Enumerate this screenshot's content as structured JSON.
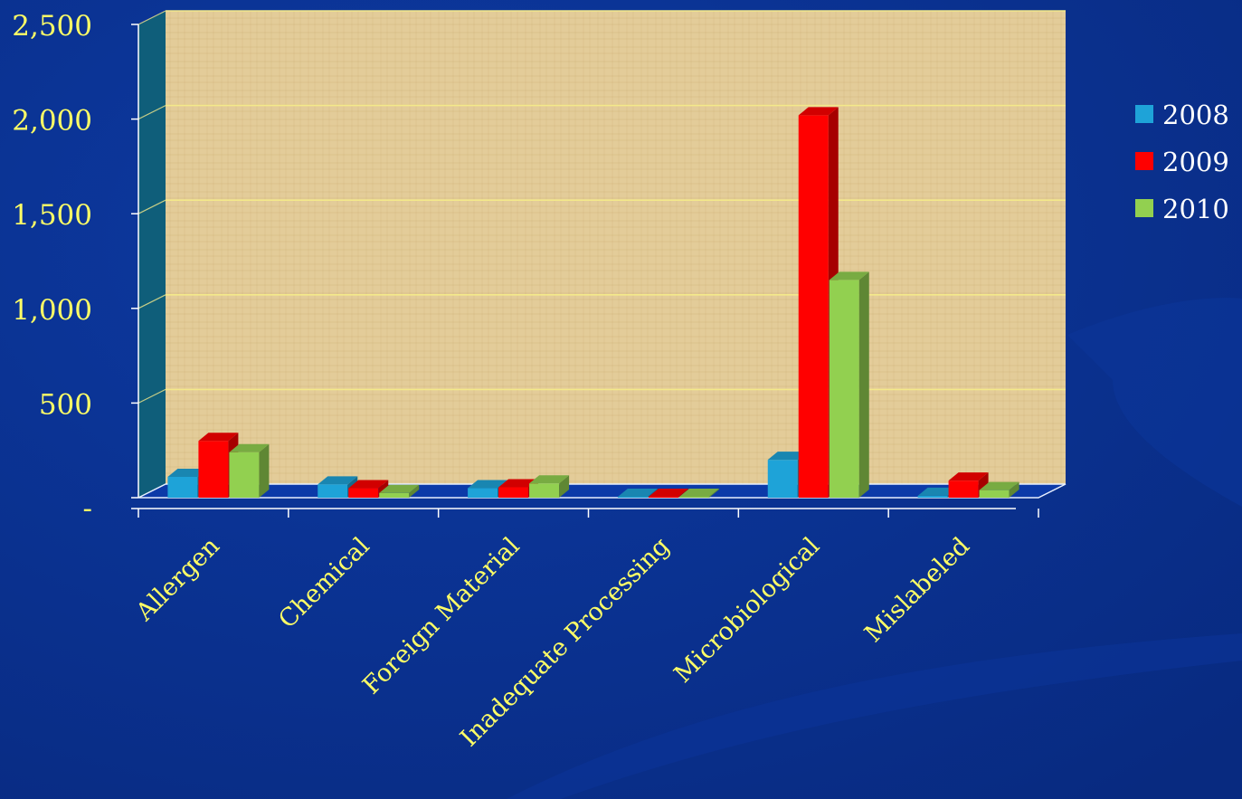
{
  "chart_data": {
    "type": "bar",
    "title": "",
    "xlabel": "",
    "ylabel": "",
    "categories": [
      "Allergen",
      "Chemical",
      "Foreign Material",
      "Inadequate Processing",
      "Microbiological",
      "Mislabeled"
    ],
    "series": [
      {
        "name": "2008",
        "color": "#1ea3d8",
        "values": [
          110,
          70,
          50,
          5,
          200,
          10
        ]
      },
      {
        "name": "2009",
        "color": "#ff0000",
        "values": [
          300,
          50,
          55,
          5,
          2020,
          90
        ]
      },
      {
        "name": "2010",
        "color": "#92d050",
        "values": [
          240,
          25,
          75,
          5,
          1150,
          40
        ]
      }
    ],
    "ylim": [
      0,
      2500
    ],
    "y_ticks": [
      {
        "value": 0,
        "label": "-"
      },
      {
        "value": 500,
        "label": "500"
      },
      {
        "value": 1000,
        "label": "1,000"
      },
      {
        "value": 1500,
        "label": "1,500"
      },
      {
        "value": 2000,
        "label": "2,000"
      },
      {
        "value": 2500,
        "label": "2,500"
      }
    ],
    "grid": true,
    "legend": "right",
    "colors": {
      "background": "#0a2f8f",
      "wall": "#e2cb98",
      "side_wall": "#0f5e7a",
      "floor": "#0c3aa8",
      "axis_text": "#ffff66",
      "gridline": "#f4e98a",
      "legend_text": "#ffffff"
    }
  }
}
